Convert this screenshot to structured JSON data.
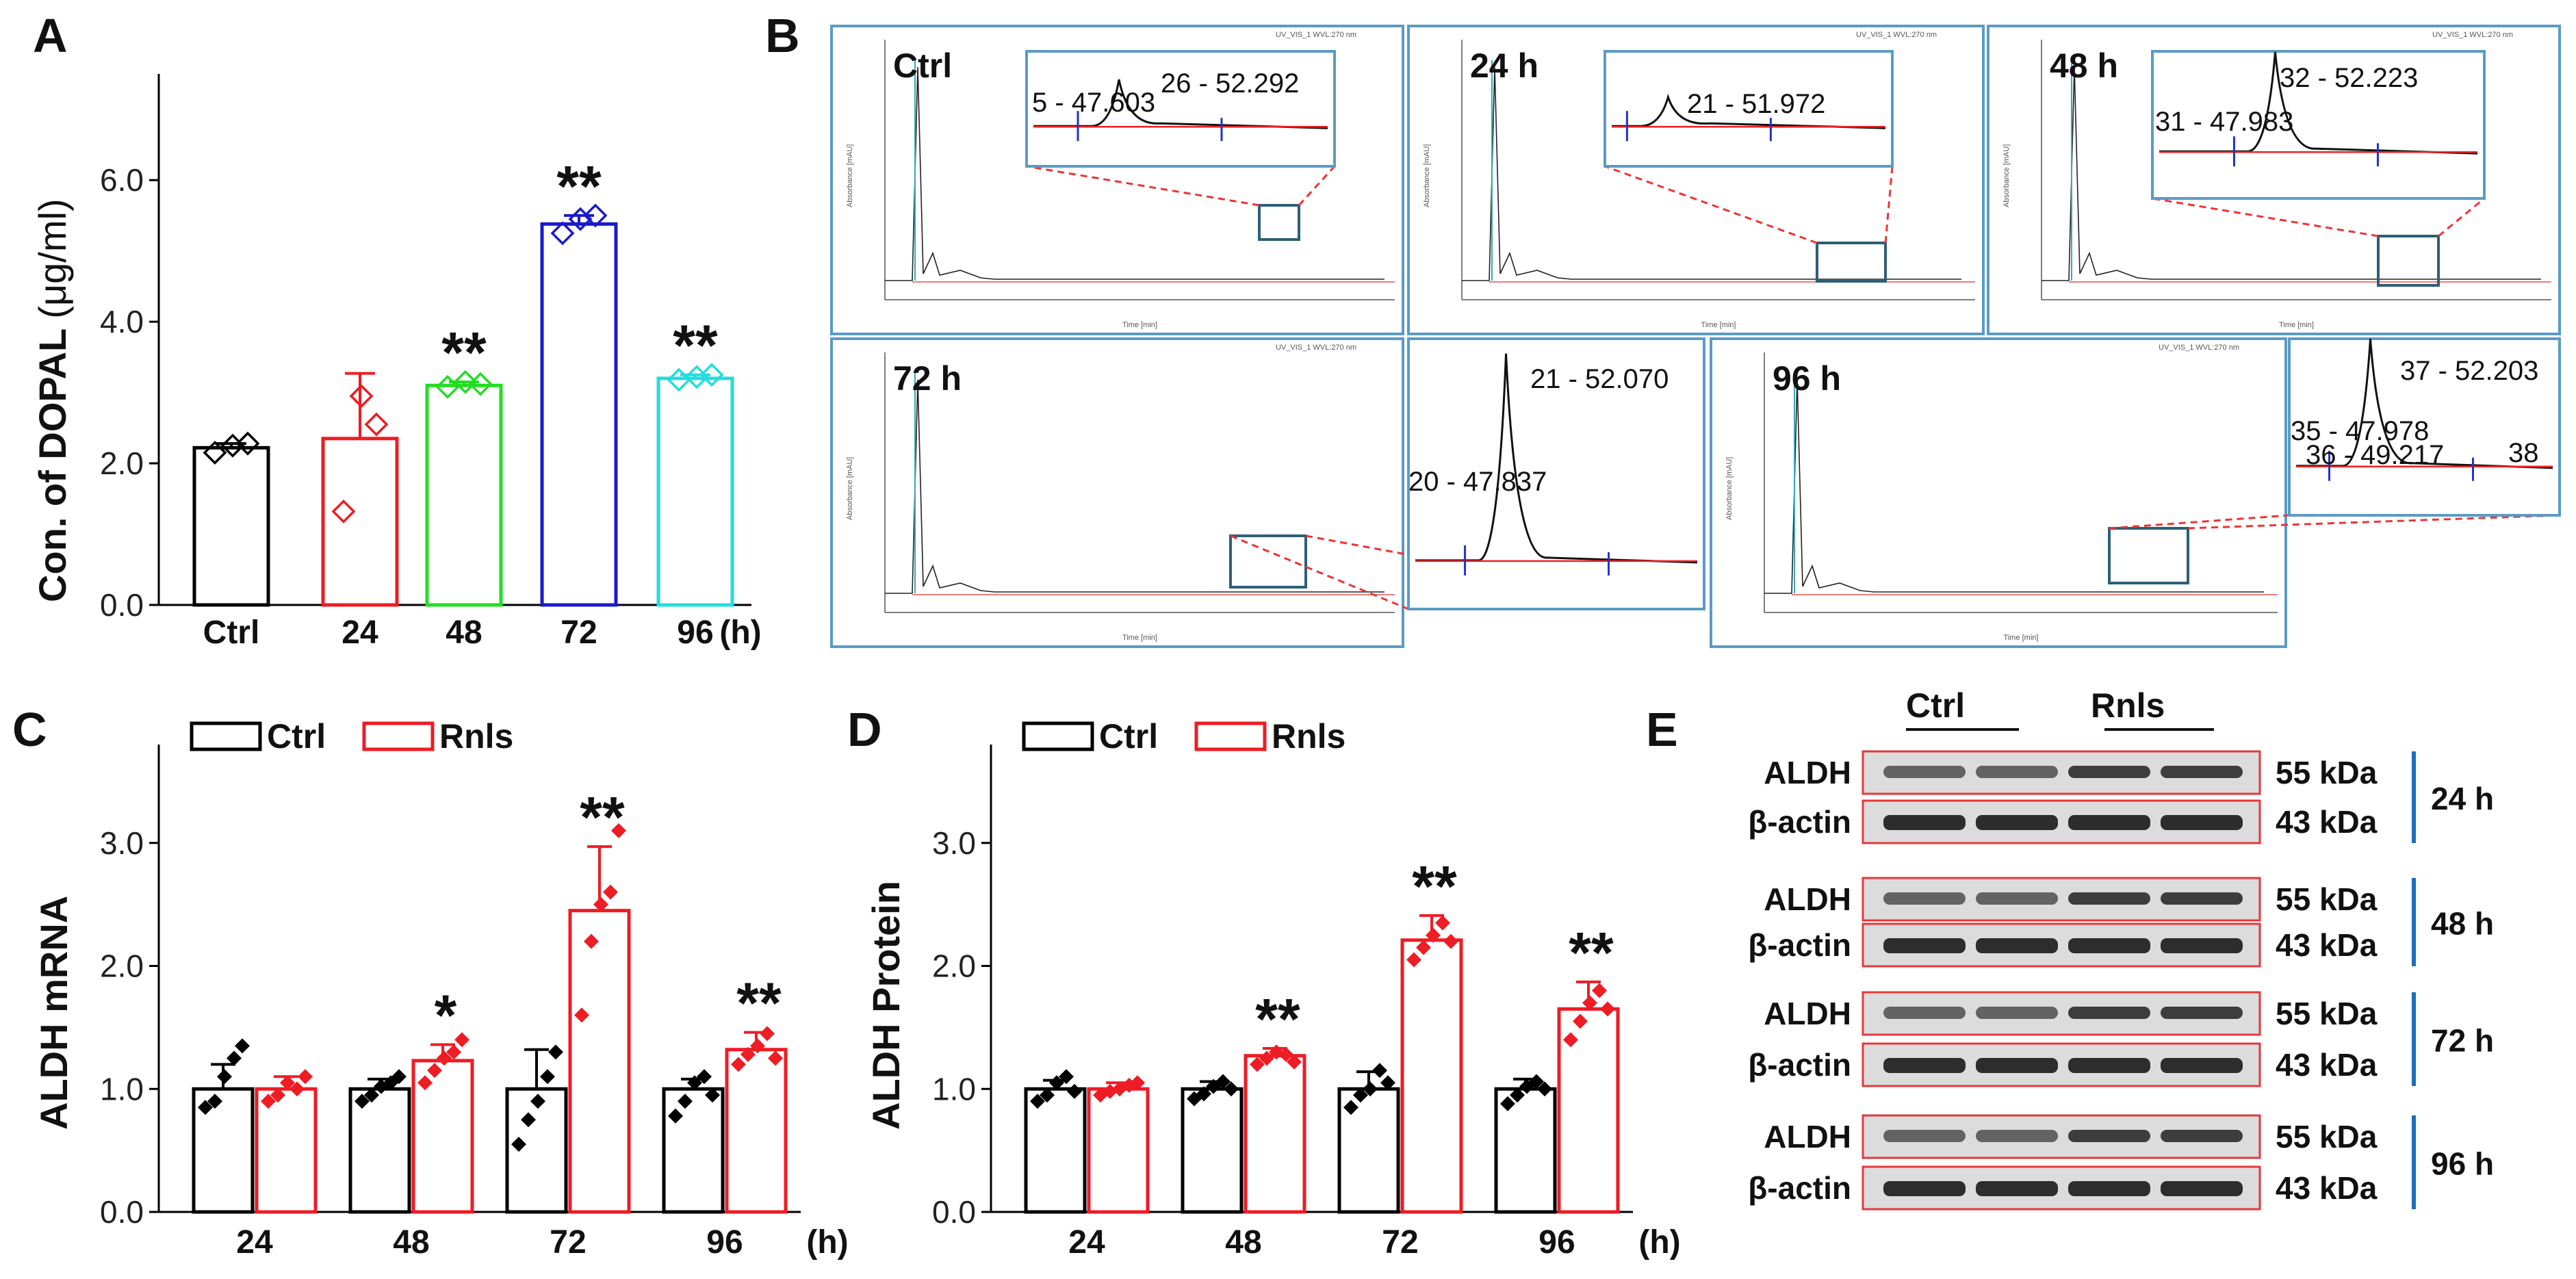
{
  "panel_labels": [
    "A",
    "B",
    "C",
    "D",
    "E"
  ],
  "colors": {
    "ctrl": "#000000",
    "t24": "#ee1c24",
    "t48": "#22dd22",
    "t72": "#1a1acc",
    "t96": "#22dddd",
    "rnls": "#ee1c24",
    "frame": "#5b9bc4",
    "inset": "#2d5e78",
    "blot_box": "#e5383b",
    "blot_bar": "#1e6fb8"
  },
  "chart_data": [
    {
      "id": "A",
      "type": "bar",
      "ylabel_main": "Con. of DOPAL",
      "ylabel_unit": "(μg/ml)",
      "unit_label": "(h)",
      "categories": [
        "Ctrl",
        "24",
        "48",
        "72",
        "96"
      ],
      "values": [
        2.22,
        2.35,
        3.1,
        5.38,
        3.2
      ],
      "errors": [
        0.06,
        0.92,
        0.05,
        0.12,
        0.05
      ],
      "points": [
        [
          2.15,
          2.25,
          2.28
        ],
        [
          1.32,
          2.95,
          2.55
        ],
        [
          3.08,
          3.15,
          3.12
        ],
        [
          5.25,
          5.45,
          5.5
        ],
        [
          3.18,
          3.22,
          3.25
        ]
      ],
      "significance": [
        "",
        "",
        "**",
        "**",
        "**"
      ],
      "ylim": [
        0,
        7.5
      ],
      "yticks": [
        "0.0",
        "2.0",
        "4.0",
        "6.0"
      ]
    },
    {
      "id": "C",
      "type": "bar",
      "ylabel": "ALDH mRNA",
      "unit_label": "(h)",
      "categories": [
        "24",
        "48",
        "72",
        "96"
      ],
      "legend": [
        "Ctrl",
        "Rnls"
      ],
      "series": [
        {
          "name": "Ctrl",
          "values": [
            1.0,
            1.0,
            1.0,
            1.0
          ],
          "errors": [
            0.2,
            0.08,
            0.32,
            0.08
          ],
          "points": [
            [
              0.85,
              0.9,
              1.1,
              1.25,
              1.35
            ],
            [
              0.9,
              0.95,
              1.02,
              1.05,
              1.1
            ],
            [
              0.55,
              0.75,
              0.9,
              1.1,
              1.3
            ],
            [
              0.78,
              0.9,
              1.05,
              1.1,
              0.95
            ]
          ]
        },
        {
          "name": "Rnls",
          "values": [
            1.0,
            1.23,
            2.45,
            1.32
          ],
          "errors": [
            0.1,
            0.13,
            0.52,
            0.14
          ],
          "points": [
            [
              0.9,
              0.95,
              1.05,
              1.0,
              1.1
            ],
            [
              1.05,
              1.15,
              1.25,
              1.3,
              1.4
            ],
            [
              1.6,
              2.2,
              2.5,
              2.6,
              3.1
            ],
            [
              1.2,
              1.28,
              1.35,
              1.45,
              1.25
            ]
          ],
          "significance": [
            "",
            "*",
            "**",
            "**"
          ]
        }
      ],
      "ylim": [
        0,
        3.8
      ],
      "yticks": [
        "0.0",
        "1.0",
        "2.0",
        "3.0"
      ]
    },
    {
      "id": "D",
      "type": "bar",
      "ylabel": "ALDH Protein",
      "unit_label": "(h)",
      "categories": [
        "24",
        "48",
        "72",
        "96"
      ],
      "legend": [
        "Ctrl",
        "Rnls"
      ],
      "series": [
        {
          "name": "Ctrl",
          "values": [
            1.0,
            1.0,
            1.0,
            1.0
          ],
          "errors": [
            0.07,
            0.06,
            0.14,
            0.08
          ],
          "points": [
            [
              0.9,
              0.95,
              1.05,
              1.1,
              0.98
            ],
            [
              0.92,
              0.96,
              1.02,
              1.06,
              1.0
            ],
            [
              0.85,
              0.95,
              1.0,
              1.15,
              1.05
            ],
            [
              0.88,
              0.95,
              1.02,
              1.06,
              1.0
            ]
          ]
        },
        {
          "name": "Rnls",
          "values": [
            1.0,
            1.27,
            2.21,
            1.65
          ],
          "errors": [
            0.05,
            0.06,
            0.2,
            0.22
          ],
          "points": [
            [
              0.95,
              0.98,
              1.0,
              1.03,
              1.05
            ],
            [
              1.2,
              1.25,
              1.3,
              1.28,
              1.22
            ],
            [
              2.05,
              2.15,
              2.25,
              2.35,
              2.2
            ],
            [
              1.4,
              1.55,
              1.7,
              1.8,
              1.65
            ]
          ],
          "significance": [
            "",
            "**",
            "**",
            "**"
          ]
        }
      ],
      "ylim": [
        0,
        3.8
      ],
      "yticks": [
        "0.0",
        "1.0",
        "2.0",
        "3.0"
      ]
    }
  ],
  "hplc": {
    "chromatograms": [
      {
        "label": "Ctrl",
        "peak_labels": [
          "5 - 47.603",
          "26 - 52.292"
        ]
      },
      {
        "label": "24 h",
        "peak_labels": [
          "21 - 51.972"
        ]
      },
      {
        "label": "48 h",
        "peak_labels": [
          "31 - 47.983",
          "32 - 52.223"
        ]
      },
      {
        "label": "72 h",
        "peak_labels": [
          "20 - 47.837",
          "21 - 52.070"
        ]
      },
      {
        "label": "96 h",
        "peak_labels": [
          "35 - 47.978",
          "36 - 49.217",
          "38",
          "37 - 52.203"
        ]
      }
    ],
    "header": "UV_VIS_1 WVL:270 nm",
    "xaxis": "Time [min]",
    "yaxis": "Absorbance [mAU]"
  },
  "western": {
    "groups": [
      "Ctrl",
      "Rnls"
    ],
    "blots": [
      {
        "protein": "ALDH",
        "kda": "55 kDa",
        "time": "24 h"
      },
      {
        "protein": "β-actin",
        "kda": "43 kDa"
      },
      {
        "protein": "ALDH",
        "kda": "55 kDa",
        "time": "48 h"
      },
      {
        "protein": "β-actin",
        "kda": "43 kDa"
      },
      {
        "protein": "ALDH",
        "kda": "55 kDa",
        "time": "72 h"
      },
      {
        "protein": "β-actin",
        "kda": "43 kDa"
      },
      {
        "protein": "ALDH",
        "kda": "55 kDa",
        "time": "96 h"
      },
      {
        "protein": "β-actin",
        "kda": "43 kDa"
      }
    ]
  }
}
